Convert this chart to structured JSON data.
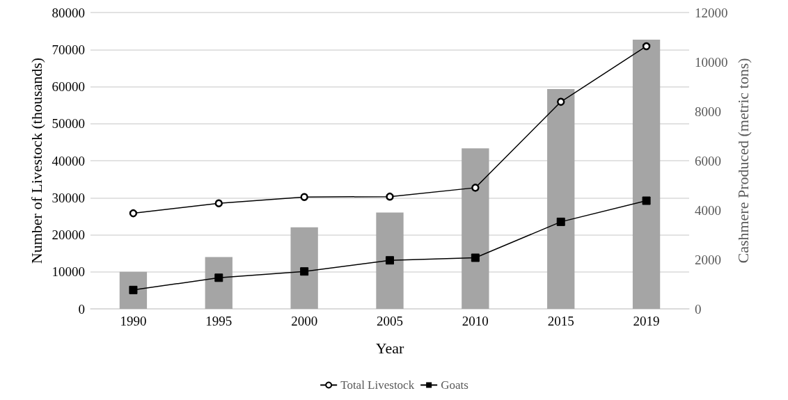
{
  "chart_data": {
    "type": "bar",
    "xlabel": "Year",
    "ylabel": "Number of Livestock (thousands)",
    "y2label": "Cashmere Produced (metric tons)",
    "categories": [
      "1990",
      "1995",
      "2000",
      "2005",
      "2010",
      "2015",
      "2019"
    ],
    "series": [
      {
        "axis": "y2",
        "color": "#a5a5a5",
        "values": [
          1500,
          2100,
          3300,
          3900,
          6500,
          8900,
          10900
        ]
      },
      {
        "type": "line",
        "name": "Total Livestock",
        "color": "#000000",
        "marker": "circle",
        "values": [
          25800,
          28500,
          30200,
          30300,
          32700,
          55900,
          70900
        ]
      },
      {
        "type": "line",
        "name": "Goats",
        "color": "#000000",
        "marker": "square",
        "values": [
          5100,
          8400,
          10100,
          13100,
          13800,
          23500,
          29200
        ]
      }
    ],
    "ylim": [
      0,
      80000
    ],
    "yticks": [
      0,
      10000,
      20000,
      30000,
      40000,
      50000,
      60000,
      70000,
      80000
    ],
    "y2lim": [
      0,
      12000
    ],
    "y2ticks": [
      0,
      2000,
      4000,
      6000,
      8000,
      10000,
      12000
    ],
    "grid": "y",
    "legend": "bottom",
    "line_style": "solid"
  }
}
